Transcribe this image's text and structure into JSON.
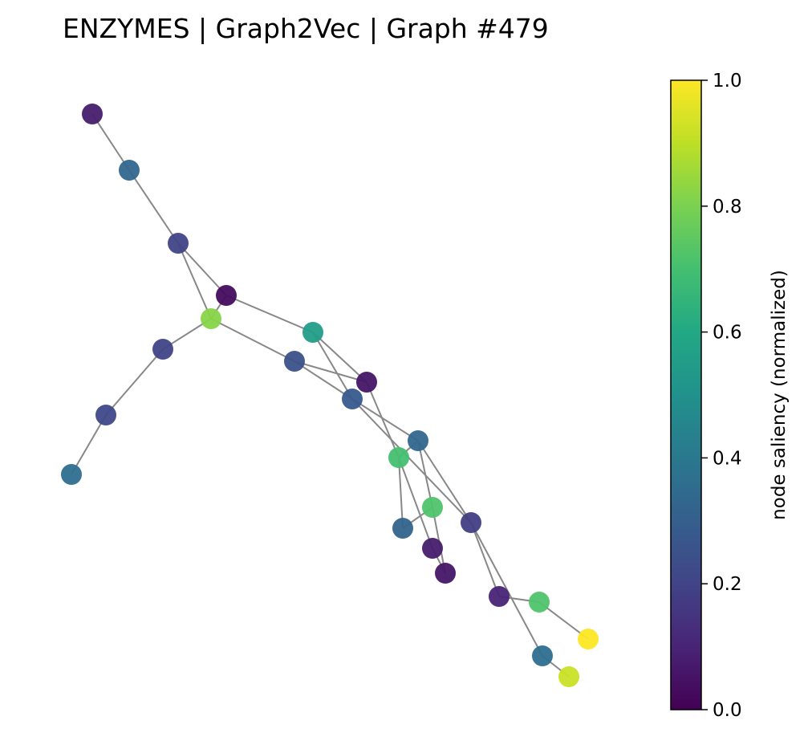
{
  "title": "ENZYMES | Graph2Vec | Graph #479",
  "colorbar": {
    "label": "node saliency (normalized)",
    "range": [
      0,
      1
    ],
    "ticks": [
      "0.0",
      "0.2",
      "0.4",
      "0.6",
      "0.8",
      "1.0"
    ],
    "colormap": "viridis"
  },
  "edge_color": "#888888",
  "graph": {
    "nodes": [
      {
        "id": 0,
        "saliency": 0.08
      },
      {
        "id": 1,
        "saliency": 0.33
      },
      {
        "id": 2,
        "saliency": 0.2
      },
      {
        "id": 3,
        "saliency": 0.03
      },
      {
        "id": 4,
        "saliency": 0.82
      },
      {
        "id": 5,
        "saliency": 0.2
      },
      {
        "id": 6,
        "saliency": 0.22
      },
      {
        "id": 7,
        "saliency": 0.36
      },
      {
        "id": 8,
        "saliency": 0.55
      },
      {
        "id": 9,
        "saliency": 0.25
      },
      {
        "id": 10,
        "saliency": 0.06
      },
      {
        "id": 11,
        "saliency": 0.28
      },
      {
        "id": 12,
        "saliency": 0.33
      },
      {
        "id": 13,
        "saliency": 0.7
      },
      {
        "id": 14,
        "saliency": 0.72
      },
      {
        "id": 15,
        "saliency": 0.32
      },
      {
        "id": 16,
        "saliency": 0.18
      },
      {
        "id": 17,
        "saliency": 0.08
      },
      {
        "id": 18,
        "saliency": 0.06
      },
      {
        "id": 19,
        "saliency": 0.1
      },
      {
        "id": 20,
        "saliency": 0.72
      },
      {
        "id": 21,
        "saliency": 1.0
      },
      {
        "id": 22,
        "saliency": 0.36
      },
      {
        "id": 23,
        "saliency": 0.92
      }
    ],
    "edges": [
      [
        0,
        1
      ],
      [
        1,
        2
      ],
      [
        2,
        3
      ],
      [
        2,
        4
      ],
      [
        3,
        4
      ],
      [
        4,
        5
      ],
      [
        5,
        6
      ],
      [
        6,
        7
      ],
      [
        3,
        8
      ],
      [
        4,
        9
      ],
      [
        8,
        10
      ],
      [
        8,
        11
      ],
      [
        9,
        10
      ],
      [
        9,
        11
      ],
      [
        10,
        13
      ],
      [
        11,
        12
      ],
      [
        11,
        16
      ],
      [
        12,
        13
      ],
      [
        12,
        16
      ],
      [
        13,
        15
      ],
      [
        13,
        17
      ],
      [
        12,
        14
      ],
      [
        14,
        15
      ],
      [
        14,
        18
      ],
      [
        17,
        18
      ],
      [
        16,
        19
      ],
      [
        16,
        22
      ],
      [
        19,
        20
      ],
      [
        20,
        21
      ],
      [
        22,
        23
      ]
    ]
  }
}
